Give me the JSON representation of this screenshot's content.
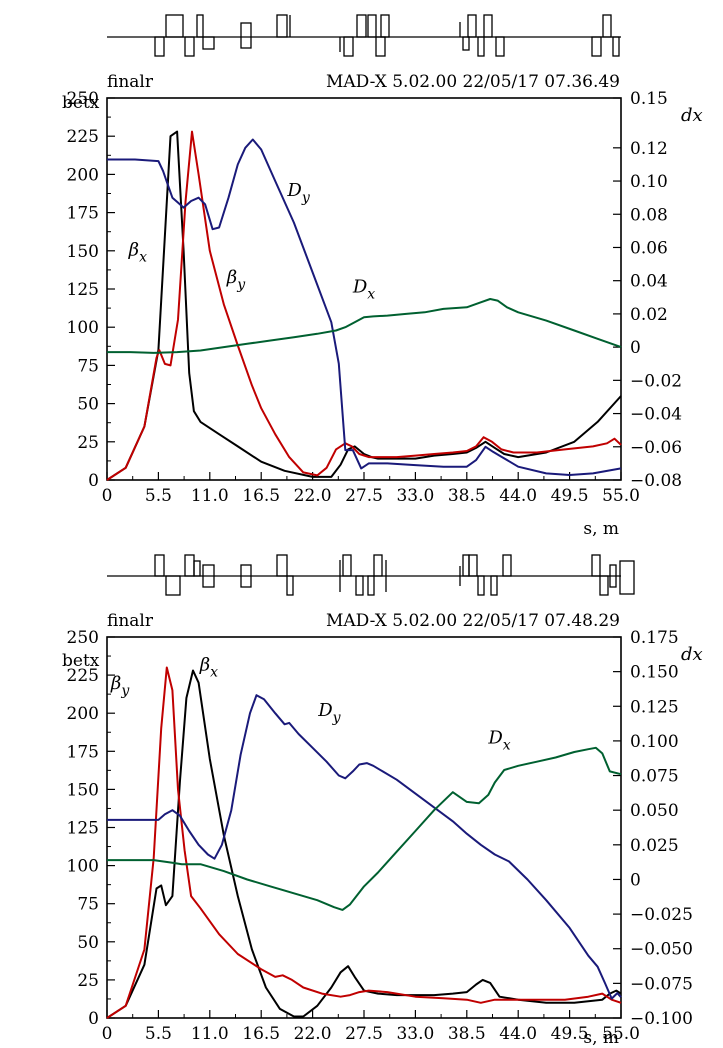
{
  "chart_data": [
    {
      "type": "line",
      "header": {
        "file": "finalr",
        "program": "MAD-X  5.02.00  22/05/17  07.36.49"
      },
      "left_axis_label": "betx",
      "right_axis_label": "dx",
      "x_axis_label": "s, m",
      "xlim": [
        0,
        55
      ],
      "ylim_left": [
        0,
        250
      ],
      "ylim_right": [
        -0.08,
        0.15
      ],
      "x_ticks": [
        "0",
        "5.5",
        "11.0",
        "16.5",
        "22.0",
        "27.5",
        "33.0",
        "38.5",
        "44.0",
        "49.5",
        "55.0"
      ],
      "y_left_ticks": [
        "0",
        "25",
        "50",
        "75",
        "100",
        "125",
        "150",
        "175",
        "200",
        "225",
        "250"
      ],
      "y_right_ticks": [
        "−0.08",
        "−0.06",
        "−0.04",
        "−0.02",
        "0",
        "0.02",
        "0.04",
        "0.06",
        "0.08",
        "0.10",
        "0.12",
        "0.15"
      ],
      "series": [
        {
          "name": "βx",
          "axis": "left",
          "color": "#000000",
          "x": [
            0,
            2,
            4,
            5.5,
            6.2,
            6.8,
            7.5,
            8.2,
            8.8,
            9.3,
            10,
            12,
            14,
            16.5,
            19,
            22,
            24,
            25,
            25.8,
            26.5,
            27.5,
            28.3,
            29,
            31,
            33,
            35,
            37,
            38.5,
            39.5,
            40.5,
            41.5,
            42.5,
            44,
            47,
            50,
            52.5,
            55
          ],
          "values": [
            0,
            8,
            35,
            85,
            160,
            225,
            228,
            150,
            70,
            45,
            38,
            30,
            22,
            12,
            6,
            2,
            2,
            10,
            20,
            22,
            17,
            15,
            14,
            14,
            14,
            16,
            17,
            18,
            21,
            25,
            21,
            17,
            15,
            18,
            25,
            38,
            55
          ]
        },
        {
          "name": "βy",
          "axis": "left",
          "color": "#c00000",
          "x": [
            0,
            2,
            4,
            5.3,
            5.6,
            6.2,
            6.8,
            7.6,
            8.4,
            9.1,
            9.8,
            11,
            12.5,
            14,
            15.5,
            16.5,
            18,
            19.5,
            21,
            22.5,
            23.5,
            24.5,
            25.5,
            26.2,
            27,
            28,
            29,
            31,
            33,
            35,
            37,
            38.5,
            39.5,
            40.3,
            41.2,
            42.2,
            43.5,
            46,
            49,
            52,
            53.5,
            54.3,
            55
          ],
          "values": [
            0,
            8,
            35,
            80,
            85,
            76,
            75,
            105,
            182,
            228,
            200,
            150,
            115,
            88,
            62,
            47,
            30,
            15,
            5,
            3,
            8,
            20,
            24,
            22,
            17,
            15,
            15,
            15,
            16,
            17,
            18,
            19,
            22,
            28,
            25,
            20,
            18,
            18,
            20,
            22,
            24,
            27,
            23
          ]
        },
        {
          "name": "Dy",
          "axis": "right",
          "color": "#1a1a7a",
          "x": [
            0,
            3,
            5.5,
            6,
            6.5,
            7,
            7.6,
            8.2,
            9,
            9.8,
            10.5,
            11.3,
            12,
            13,
            14,
            14.8,
            15.6,
            16.5,
            18,
            20,
            22,
            24,
            24.8,
            25.5,
            26.3,
            27.2,
            28,
            30,
            33,
            36,
            38.5,
            39.5,
            40.5,
            41.3,
            42.2,
            44,
            47,
            49.5,
            52,
            55
          ],
          "values": [
            0.113,
            0.113,
            0.112,
            0.106,
            0.098,
            0.09,
            0.087,
            0.084,
            0.088,
            0.09,
            0.086,
            0.071,
            0.072,
            0.09,
            0.11,
            0.12,
            0.125,
            0.119,
            0.1,
            0.075,
            0.045,
            0.015,
            -0.01,
            -0.062,
            -0.062,
            -0.073,
            -0.07,
            -0.07,
            -0.071,
            -0.072,
            -0.072,
            -0.068,
            -0.06,
            -0.063,
            -0.066,
            -0.072,
            -0.076,
            -0.077,
            -0.076,
            -0.073
          ]
        },
        {
          "name": "Dx",
          "axis": "right",
          "color": "#006030",
          "x": [
            0,
            2.5,
            5,
            7.5,
            10,
            12.5,
            15,
            17.5,
            20,
            22.5,
            24.5,
            25.5,
            26.5,
            27.5,
            28.5,
            30,
            32,
            34,
            36,
            38.5,
            40,
            41,
            41.8,
            42.8,
            44,
            47,
            50,
            52.5,
            55
          ],
          "values": [
            -0.003,
            -0.003,
            -0.0035,
            -0.003,
            -0.002,
            0,
            0.002,
            0.004,
            0.006,
            0.008,
            0.01,
            0.012,
            0.015,
            0.018,
            0.0185,
            0.019,
            0.02,
            0.021,
            0.023,
            0.024,
            0.027,
            0.029,
            0.028,
            0.024,
            0.021,
            0.016,
            0.01,
            0.005,
            0
          ]
        }
      ],
      "annotations": [
        {
          "text": "βx",
          "x": 3.3,
          "y": 147
        },
        {
          "text": "βy",
          "x": 13.8,
          "y": 129
        },
        {
          "text": "Dy",
          "x": 20.5,
          "y": 0.091
        },
        {
          "text": "Dx",
          "x": 27.5,
          "y": 0.033
        }
      ]
    },
    {
      "type": "line",
      "header": {
        "file": "finalr",
        "program": "MAD-X  5.02.00  22/05/17  07.48.29"
      },
      "left_axis_label": "betx",
      "right_axis_label": "dx",
      "x_axis_label": "s, m",
      "xlim": [
        0,
        55
      ],
      "ylim_left": [
        0,
        250
      ],
      "ylim_right": [
        -0.1,
        0.175
      ],
      "x_ticks": [
        "0",
        "5.5",
        "11.0",
        "16.5",
        "22.0",
        "27.5",
        "33.0",
        "38.5",
        "44.0",
        "49.5",
        "55.0"
      ],
      "y_left_ticks": [
        "0",
        "25",
        "50",
        "75",
        "100",
        "125",
        "150",
        "175",
        "200",
        "225",
        "250"
      ],
      "y_right_ticks": [
        "−0.100",
        "−0.075",
        "−0.050",
        "−0.025",
        "0",
        "0.025",
        "0.050",
        "0.075",
        "0.100",
        "0.125",
        "0.150",
        "0.175"
      ],
      "series": [
        {
          "name": "βx",
          "axis": "left",
          "color": "#000000",
          "x": [
            0,
            2,
            4,
            5.3,
            5.8,
            6.3,
            7,
            7.8,
            8.5,
            9.2,
            9.8,
            11,
            12.5,
            14,
            15.5,
            17,
            18.5,
            20,
            21,
            22.5,
            24,
            25,
            25.8,
            26.5,
            27.5,
            29,
            31,
            33,
            35,
            37,
            38.5,
            39.5,
            40.2,
            41,
            42,
            44,
            47,
            50,
            53,
            53.8,
            54.5,
            55
          ],
          "values": [
            0,
            8,
            35,
            85,
            87,
            74,
            80,
            155,
            210,
            228,
            220,
            170,
            120,
            80,
            45,
            20,
            6,
            1,
            1,
            8,
            20,
            30,
            34,
            27,
            18,
            16,
            15,
            15,
            15,
            16,
            17,
            22,
            25,
            23,
            14,
            12,
            10,
            10,
            12,
            16,
            18,
            16
          ]
        },
        {
          "name": "βy",
          "axis": "left",
          "color": "#c00000",
          "x": [
            0,
            2,
            4,
            5,
            5.8,
            6.4,
            7,
            7.6,
            8.3,
            9,
            10,
            12,
            14,
            16.5,
            18,
            18.8,
            19.8,
            21,
            23,
            25,
            26,
            27,
            28,
            30,
            33,
            36,
            38.5,
            40,
            41.5,
            43,
            46,
            49,
            51.5,
            53,
            54,
            55
          ],
          "values": [
            0,
            8,
            45,
            105,
            190,
            230,
            215,
            150,
            110,
            80,
            72,
            55,
            42,
            32,
            27,
            28,
            25,
            20,
            16,
            14,
            15,
            17,
            18,
            17,
            14,
            13,
            12,
            10,
            12,
            12,
            12,
            12,
            14,
            16,
            12,
            10
          ]
        },
        {
          "name": "Dy",
          "axis": "right",
          "color": "#1a1a7a",
          "x": [
            0,
            3,
            5.5,
            6.2,
            7,
            7.8,
            8.8,
            9.8,
            10.8,
            11.5,
            12.3,
            13.3,
            14.3,
            15.3,
            16,
            16.8,
            18,
            19,
            19.5,
            20.5,
            22,
            23.5,
            24.8,
            25.5,
            26.3,
            27,
            27.8,
            28.5,
            29.5,
            31,
            33,
            35,
            37,
            38.5,
            40,
            41.5,
            43,
            45,
            47,
            49.5,
            51.5,
            52.5,
            53.3,
            54,
            54.6,
            55
          ],
          "values": [
            0.043,
            0.043,
            0.043,
            0.047,
            0.05,
            0.046,
            0.035,
            0.025,
            0.018,
            0.015,
            0.025,
            0.05,
            0.09,
            0.12,
            0.133,
            0.13,
            0.12,
            0.112,
            0.113,
            0.105,
            0.095,
            0.085,
            0.075,
            0.073,
            0.078,
            0.083,
            0.084,
            0.082,
            0.078,
            0.072,
            0.062,
            0.052,
            0.042,
            0.033,
            0.025,
            0.018,
            0.013,
            0.0,
            -0.015,
            -0.035,
            -0.055,
            -0.063,
            -0.075,
            -0.086,
            -0.082,
            -0.085
          ]
        },
        {
          "name": "Dx",
          "axis": "right",
          "color": "#006030",
          "x": [
            0,
            2.5,
            5,
            7,
            8,
            10,
            12.5,
            15,
            17.5,
            20,
            22.5,
            24.3,
            25.2,
            26,
            27.5,
            29,
            31,
            33,
            35,
            37,
            38.5,
            39.8,
            40.8,
            41.5,
            42.5,
            44,
            46,
            48,
            50,
            51.5,
            52.3,
            53,
            53.8,
            55
          ],
          "values": [
            0.014,
            0.014,
            0.014,
            0.012,
            0.011,
            0.011,
            0.006,
            0.0,
            -0.005,
            -0.01,
            -0.015,
            -0.02,
            -0.022,
            -0.018,
            -0.005,
            0.005,
            0.02,
            0.035,
            0.05,
            0.063,
            0.056,
            0.055,
            0.061,
            0.07,
            0.079,
            0.082,
            0.085,
            0.088,
            0.092,
            0.094,
            0.095,
            0.091,
            0.078,
            0.076
          ]
        }
      ],
      "annotations": [
        {
          "text": "βy",
          "x": 1.4,
          "y": 216
        },
        {
          "text": "βx",
          "x": 10.9,
          "y": 228
        },
        {
          "text": "Dy",
          "x": 23.8,
          "y": 0.118
        },
        {
          "text": "Dx",
          "x": 42.0,
          "y": 0.098
        }
      ]
    }
  ]
}
